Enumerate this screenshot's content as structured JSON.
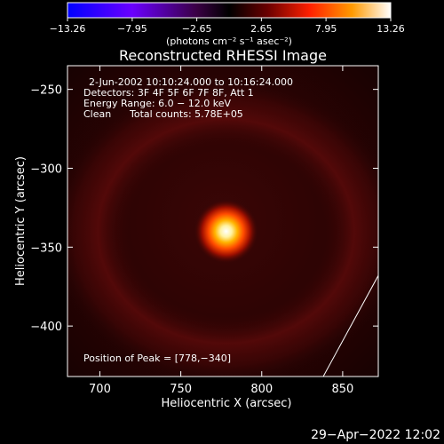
{
  "chart_data": {
    "type": "heatmap",
    "title": "Reconstructed RHESSI Image",
    "xlabel": "Heliocentric X (arcsec)",
    "ylabel": "Heliocentric Y (arcsec)",
    "xlim": [
      680,
      872
    ],
    "ylim": [
      -432,
      -235
    ],
    "x_ticks": [
      700,
      750,
      800,
      850
    ],
    "x_tick_labels": [
      "700",
      "750",
      "800",
      "850"
    ],
    "y_ticks": [
      -250,
      -300,
      -350,
      -400
    ],
    "y_tick_labels": [
      "−250",
      "−300",
      "−350",
      "−400"
    ],
    "annotations": {
      "time_range": "2-Jun-2002 10:10:24.000 to 10:16:24.000",
      "detectors": "Detectors: 3F 4F 5F 6F 7F 8F, Att 1",
      "energy": "Energy Range: 6.0 − 12.0 keV",
      "method": "Clean",
      "counts": "Total counts: 5.78E+05",
      "peak": "Position of Peak = [778,−340]"
    },
    "peak": {
      "x": 778,
      "y": -340
    },
    "colorbar": {
      "min": -13.26,
      "max": 13.26,
      "ticks": [
        -13.26,
        -7.95,
        -2.65,
        2.65,
        7.95,
        13.26
      ],
      "tick_labels": [
        "−13.26",
        "−7.95",
        "−2.65",
        "2.65",
        "7.95",
        "13.26"
      ],
      "unit_label": "(photons cm⁻² s⁻¹ asec⁻²)",
      "colormap": [
        "#0000ff",
        "#7a00ff",
        "#3a0044",
        "#000000",
        "#6b0000",
        "#ff2000",
        "#ff9a00",
        "#ffffff"
      ]
    },
    "limb_line": {
      "x": [
        838,
        872
      ],
      "y": [
        -432,
        -368
      ]
    }
  },
  "timestamp": "29−Apr−2022 12:02"
}
